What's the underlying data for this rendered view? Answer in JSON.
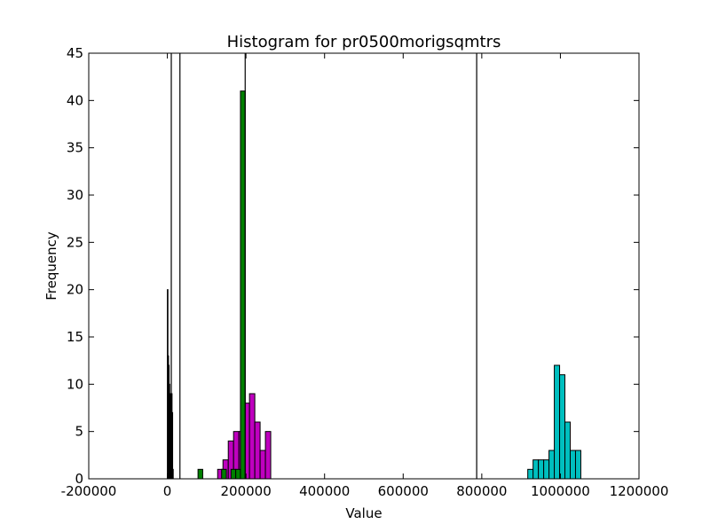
{
  "chart_data": {
    "type": "bar",
    "title": "Histogram for pr0500morigsqmtrs",
    "xlabel": "Value",
    "ylabel": "Frequency",
    "xlim": [
      -200000,
      1200000
    ],
    "ylim": [
      0,
      45
    ],
    "x_ticks": [
      "-200000",
      "0",
      "200000",
      "400000",
      "600000",
      "800000",
      "1000000",
      "1200000"
    ],
    "y_ticks": [
      "0",
      "5",
      "10",
      "15",
      "20",
      "25",
      "30",
      "35",
      "40",
      "45"
    ],
    "grid": false,
    "legend": "none",
    "vertical_lines": [
      10000,
      32000,
      198000,
      787000
    ],
    "series": [
      {
        "color": "#000000",
        "bins": [
          {
            "start": 0,
            "end": 1500,
            "count": 20
          },
          {
            "start": 1500,
            "end": 3000,
            "count": 13
          },
          {
            "start": 3000,
            "end": 4500,
            "count": 12
          },
          {
            "start": 4500,
            "end": 6000,
            "count": 10
          },
          {
            "start": 6000,
            "end": 7500,
            "count": 4
          },
          {
            "start": 7500,
            "end": 9000,
            "count": 9
          },
          {
            "start": 9000,
            "end": 10500,
            "count": 7
          },
          {
            "start": 10500,
            "end": 12000,
            "count": 9
          },
          {
            "start": 12000,
            "end": 13500,
            "count": 7
          },
          {
            "start": 13500,
            "end": 15000,
            "count": 1
          }
        ]
      },
      {
        "color": "#bf00bf",
        "bins": [
          {
            "start": 128000,
            "end": 141500,
            "count": 1
          },
          {
            "start": 141500,
            "end": 155000,
            "count": 2
          },
          {
            "start": 155000,
            "end": 168500,
            "count": 4
          },
          {
            "start": 168500,
            "end": 182000,
            "count": 5
          },
          {
            "start": 182000,
            "end": 195500,
            "count": 5
          },
          {
            "start": 195500,
            "end": 209000,
            "count": 8
          },
          {
            "start": 209000,
            "end": 222500,
            "count": 9
          },
          {
            "start": 222500,
            "end": 236000,
            "count": 6
          },
          {
            "start": 236000,
            "end": 249500,
            "count": 3
          },
          {
            "start": 249500,
            "end": 263000,
            "count": 5
          }
        ]
      },
      {
        "color": "#008000",
        "bins": [
          {
            "start": 78000,
            "end": 90000,
            "count": 1
          },
          {
            "start": 138000,
            "end": 150000,
            "count": 1
          },
          {
            "start": 162000,
            "end": 174000,
            "count": 1
          },
          {
            "start": 174000,
            "end": 186000,
            "count": 1
          },
          {
            "start": 186000,
            "end": 198000,
            "count": 41
          }
        ]
      },
      {
        "color": "#00bfbf",
        "bins": [
          {
            "start": 917000,
            "end": 930500,
            "count": 1
          },
          {
            "start": 930500,
            "end": 944000,
            "count": 2
          },
          {
            "start": 944000,
            "end": 957500,
            "count": 2
          },
          {
            "start": 957500,
            "end": 971000,
            "count": 2
          },
          {
            "start": 971000,
            "end": 984500,
            "count": 3
          },
          {
            "start": 984500,
            "end": 998000,
            "count": 12
          },
          {
            "start": 998000,
            "end": 1011500,
            "count": 11
          },
          {
            "start": 1011500,
            "end": 1025000,
            "count": 6
          },
          {
            "start": 1025000,
            "end": 1038500,
            "count": 3
          },
          {
            "start": 1038500,
            "end": 1052000,
            "count": 3
          }
        ]
      }
    ]
  }
}
